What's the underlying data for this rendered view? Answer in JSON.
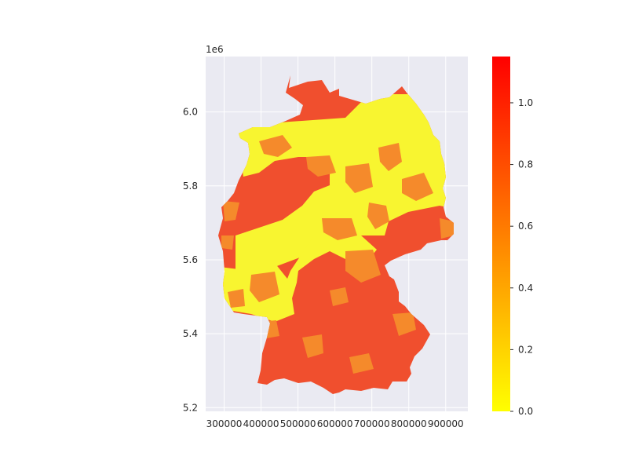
{
  "chart_data": {
    "type": "choropleth",
    "x_ticks": [
      "300000",
      "400000",
      "500000",
      "600000",
      "700000",
      "800000",
      "900000"
    ],
    "x_tick_values": [
      300000,
      400000,
      500000,
      600000,
      700000,
      800000,
      900000
    ],
    "y_ticks": [
      "5.2",
      "5.4",
      "5.6",
      "5.8",
      "6.0"
    ],
    "y_tick_values": [
      5.2,
      5.4,
      5.6,
      5.8,
      6.0
    ],
    "y_offset_label": "1e6",
    "xlim": [
      250000,
      960000
    ],
    "ylim": [
      5190000,
      6150000
    ],
    "grid": true,
    "colorbar": {
      "ticks": [
        "0.0",
        "0.2",
        "0.4",
        "0.6",
        "0.8",
        "1.0"
      ],
      "tick_values": [
        0.0,
        0.2,
        0.4,
        0.6,
        0.8,
        1.0
      ],
      "range": [
        0.0,
        1.15
      ],
      "colormap": "autumn_r",
      "color_low": "#ffff00",
      "color_high": "#ff0000"
    },
    "colors": {
      "plot_background": "#eaeaf2",
      "grid": "#ffffff",
      "low_regions": "#f8f530",
      "mid_regions": "#f58a2b",
      "high_regions": "#f04f2e"
    }
  }
}
